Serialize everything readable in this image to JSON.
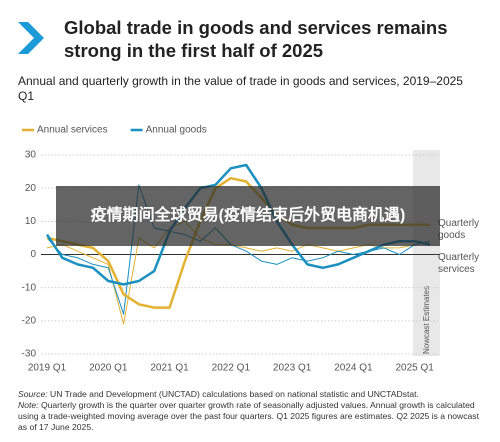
{
  "chart_data": {
    "type": "line",
    "title": "Global trade in goods and services remains strong in the first half of 2025",
    "subtitle": "Annual and quarterly growth in the value of trade in goods and services, 2019–2025 Q1",
    "categories": [
      "2019 Q1",
      null,
      null,
      null,
      "2020 Q1",
      null,
      null,
      null,
      "2021 Q1",
      null,
      null,
      null,
      "2022 Q1",
      null,
      null,
      null,
      "2023 Q1",
      null,
      null,
      null,
      "2024 Q1",
      null,
      null,
      null,
      "2025 Q1",
      null
    ],
    "series": [
      {
        "name": "Quarterly services",
        "color": "#e3b232",
        "line_width": 1,
        "legend": false,
        "values": [
          2,
          3,
          1,
          -1,
          -3,
          -21,
          5,
          2,
          8,
          10,
          5,
          3,
          3,
          2,
          1,
          2,
          1,
          3,
          2,
          1,
          2,
          3,
          2,
          2,
          3,
          4
        ]
      },
      {
        "name": "Quarterly goods",
        "color": "#1a8fc0",
        "line_width": 1,
        "legend": false,
        "values": [
          5,
          0,
          -1,
          -3,
          -4,
          -18,
          21,
          8,
          7,
          6,
          4,
          8,
          3,
          1,
          -2,
          -3,
          -1,
          -2,
          -1,
          1,
          0,
          1,
          2,
          0,
          3,
          4
        ]
      },
      {
        "name": "Annual services",
        "color": "#e3b232",
        "line_width": 2.5,
        "legend": true,
        "values": [
          5,
          4,
          3,
          2,
          -2,
          -12,
          -15,
          -16,
          -16,
          -2,
          10,
          20,
          23,
          22,
          17,
          12,
          9,
          8,
          8,
          8,
          8,
          9,
          9,
          9,
          9,
          9
        ]
      },
      {
        "name": "Annual goods",
        "color": "#1a8fc0",
        "line_width": 2.5,
        "legend": true,
        "values": [
          6,
          -1,
          -3,
          -4,
          -8,
          -9,
          -8,
          -5,
          7,
          14,
          20,
          21,
          26,
          27,
          20,
          10,
          3,
          -3,
          -4,
          -3,
          -1,
          1,
          3,
          4,
          4,
          3
        ]
      }
    ],
    "ylim": [
      -30,
      30
    ],
    "yticks": [
      30,
      20,
      10,
      0,
      -10,
      -20,
      -30
    ],
    "grid": true,
    "nowcast_label": "Nowcast Estimates",
    "source_label": "Source:",
    "source": "UN Trade and Development (UNCTAD) calculations based on national statistic and UNCTADstat.",
    "note_label": "Note:",
    "note": "Quarterly growth is the quarter over quarter growth rate of seasonally adjusted values. Annual growth is calculated using a trade-weighted moving average over the past four quarters. Q1 2025 figures are estimates. Q2 2025 is a nowcast as of 17 June 2025."
  },
  "overlay_text": "疫情期间全球贸易(疫情结束后外贸电商机遇)"
}
